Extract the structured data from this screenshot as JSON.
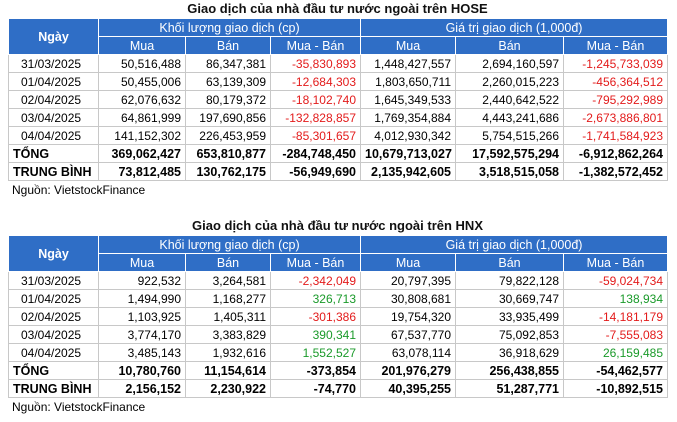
{
  "tables": [
    {
      "title": "Giao dịch của nhà đầu tư nước ngoài trên HOSE",
      "header": {
        "date": "Ngày",
        "groups": [
          "Khối lượng giao dịch (cp)",
          "Giá trị giao dịch (1,000đ)"
        ],
        "columns": [
          "Mua",
          "Bán",
          "Mua - Bán",
          "Mua",
          "Bán",
          "Mua - Bán"
        ]
      },
      "rows": [
        [
          "31/03/2025",
          "50,516,488",
          "86,347,381",
          "-35,830,893",
          "1,448,427,557",
          "2,694,160,597",
          "-1,245,733,039"
        ],
        [
          "01/04/2025",
          "50,455,006",
          "63,139,309",
          "-12,684,303",
          "1,803,650,711",
          "2,260,015,223",
          "-456,364,512"
        ],
        [
          "02/04/2025",
          "62,076,632",
          "80,179,372",
          "-18,102,740",
          "1,645,349,533",
          "2,440,642,522",
          "-795,292,989"
        ],
        [
          "03/04/2025",
          "64,861,999",
          "197,690,856",
          "-132,828,857",
          "1,769,354,884",
          "4,443,241,686",
          "-2,673,886,801"
        ],
        [
          "04/04/2025",
          "141,152,302",
          "226,453,959",
          "-85,301,657",
          "4,012,930,342",
          "5,754,515,266",
          "-1,741,584,923"
        ]
      ],
      "summary": [
        [
          "TỔNG",
          "369,062,427",
          "653,810,877",
          "-284,748,450",
          "10,679,713,027",
          "17,592,575,294",
          "-6,912,862,264"
        ],
        [
          "TRUNG BÌNH",
          "73,812,485",
          "130,762,175",
          "-56,949,690",
          "2,135,942,605",
          "3,518,515,058",
          "-1,382,572,452"
        ]
      ],
      "source": "Nguồn: VietstockFinance"
    },
    {
      "title": "Giao dịch của nhà đầu tư nước ngoài trên HNX",
      "header": {
        "date": "Ngày",
        "groups": [
          "Khối lượng giao dịch (cp)",
          "Giá trị giao dịch (1,000đ)"
        ],
        "columns": [
          "Mua",
          "Bán",
          "Mua - Bán",
          "Mua",
          "Bán",
          "Mua - Bán"
        ]
      },
      "rows": [
        [
          "31/03/2025",
          "922,532",
          "3,264,581",
          "-2,342,049",
          "20,797,395",
          "79,822,128",
          "-59,024,734"
        ],
        [
          "01/04/2025",
          "1,494,990",
          "1,168,277",
          "326,713",
          "30,808,681",
          "30,669,747",
          "138,934"
        ],
        [
          "02/04/2025",
          "1,103,925",
          "1,405,311",
          "-301,386",
          "19,754,320",
          "33,935,499",
          "-14,181,179"
        ],
        [
          "03/04/2025",
          "3,774,170",
          "3,383,829",
          "390,341",
          "67,537,770",
          "75,092,853",
          "-7,555,083"
        ],
        [
          "04/04/2025",
          "3,485,143",
          "1,932,616",
          "1,552,527",
          "63,078,114",
          "36,918,629",
          "26,159,485"
        ]
      ],
      "summary": [
        [
          "TỔNG",
          "10,780,760",
          "11,154,614",
          "-373,854",
          "201,976,279",
          "256,438,855",
          "-54,462,577"
        ],
        [
          "TRUNG BÌNH",
          "2,156,152",
          "2,230,922",
          "-74,770",
          "40,395,255",
          "51,287,771",
          "-10,892,515"
        ]
      ],
      "source": "Nguồn: VietstockFinance"
    }
  ]
}
